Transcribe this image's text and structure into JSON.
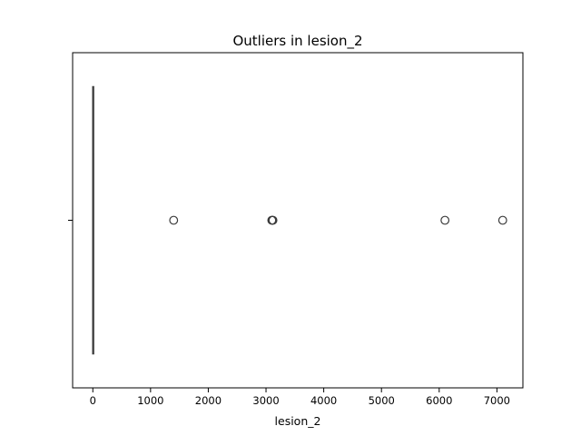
{
  "chart_data": {
    "type": "box",
    "orientation": "horizontal",
    "title": "Outliers in lesion_2",
    "xlabel": "lesion_2",
    "ylabel": "",
    "xlim": [
      -350,
      7450
    ],
    "x_ticks": [
      0,
      1000,
      2000,
      3000,
      4000,
      5000,
      6000,
      7000
    ],
    "x_tick_labels": [
      "0",
      "1000",
      "2000",
      "3000",
      "4000",
      "5000",
      "6000",
      "7000"
    ],
    "box": {
      "whisker_low": 0,
      "q1": 0,
      "median": 0,
      "q3": 3,
      "whisker_high": 8
    },
    "outliers": [
      1400,
      3100,
      3110,
      3120,
      6100,
      7100
    ],
    "grid": false,
    "colors": {
      "box": "#3a3a3a",
      "outlier_edge": "#3a3a3a",
      "box_fill": "#4c72b0"
    }
  }
}
